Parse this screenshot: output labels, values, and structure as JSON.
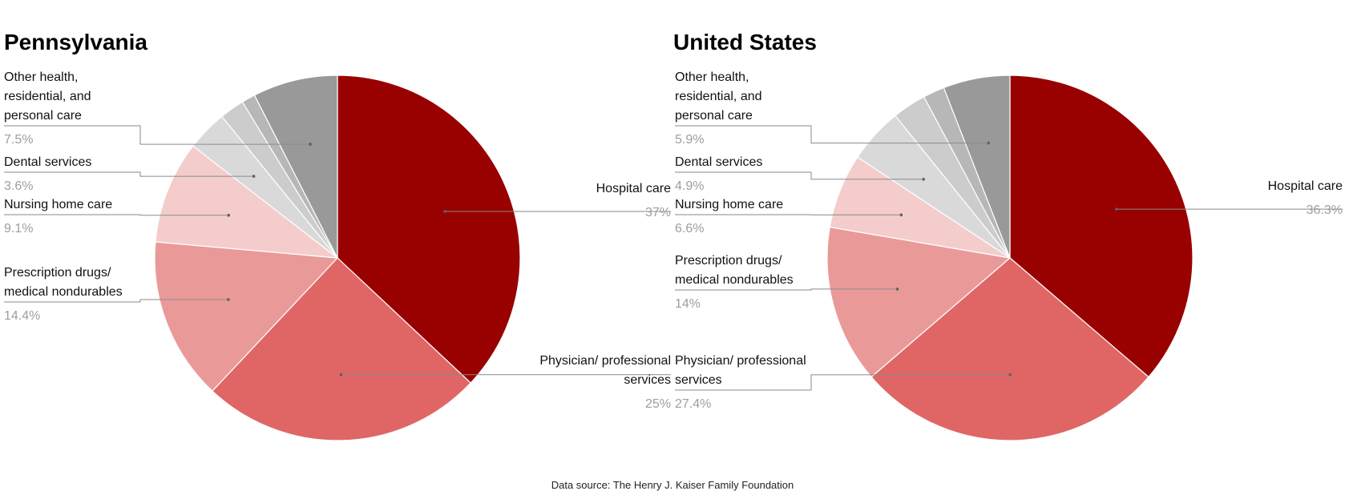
{
  "source_note": "Data source: The Henry J. Kaiser Family Foundation",
  "chart_data": [
    {
      "type": "pie",
      "title": "Pennsylvania",
      "categories": [
        "Hospital care",
        "Physician/ professional services",
        "Prescription drugs/ medical nondurables",
        "Nursing home care",
        "Dental services",
        "",
        "",
        "Other health, residential, and personal care"
      ],
      "values": [
        37,
        25,
        14.4,
        9.1,
        3.6,
        2.2,
        1.2,
        7.5
      ],
      "value_labels": [
        "37%",
        "25%",
        "14.4%",
        "9.1%",
        "3.6%",
        "",
        "",
        "7.5%"
      ],
      "colors": [
        "#990000",
        "#e06666",
        "#ea9999",
        "#f4cccc",
        "#d9d9d9",
        "#cccccc",
        "#b7b7b7",
        "#999999"
      ]
    },
    {
      "type": "pie",
      "title": "United States",
      "categories": [
        "Hospital care",
        "Physician/ professional services",
        "Prescription drugs/ medical nondurables",
        "Nursing home care",
        "Dental services",
        "",
        "",
        "Other health, residential, and personal care"
      ],
      "values": [
        36.3,
        27.4,
        14,
        6.6,
        4.9,
        3,
        1.9,
        5.9
      ],
      "value_labels": [
        "36.3%",
        "27.4%",
        "14%",
        "6.6%",
        "4.9%",
        "",
        "",
        "5.9%"
      ],
      "colors": [
        "#990000",
        "#e06666",
        "#ea9999",
        "#f4cccc",
        "#d9d9d9",
        "#cccccc",
        "#b7b7b7",
        "#999999"
      ]
    }
  ]
}
